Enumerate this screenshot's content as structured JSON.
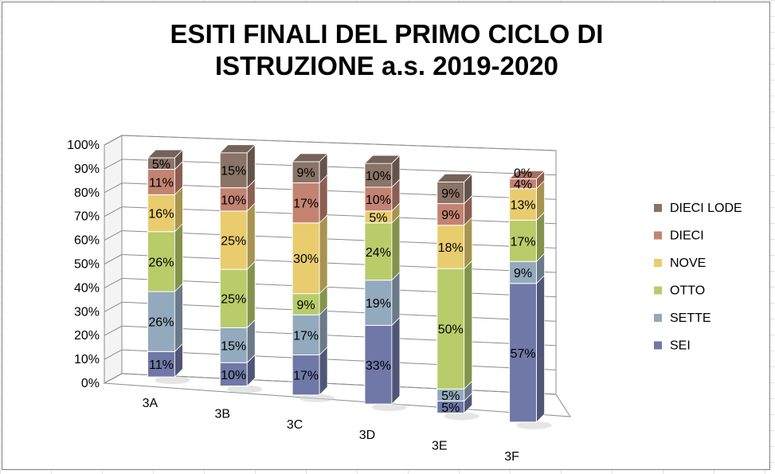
{
  "chart_data": {
    "type": "bar",
    "stacked": true,
    "three_d": true,
    "title_lines": [
      "ESITI FINALI DEL PRIMO CICLO DI",
      "ISTRUZIONE a.s. 2019-2020"
    ],
    "categories": [
      "3A",
      "3B",
      "3C",
      "3D",
      "3E",
      "3F"
    ],
    "ylim": [
      0,
      100
    ],
    "y_ticks": [
      "0%",
      "10%",
      "20%",
      "30%",
      "40%",
      "50%",
      "60%",
      "70%",
      "80%",
      "90%",
      "100%"
    ],
    "grid": true,
    "legend_position": "right",
    "series": [
      {
        "name": "SEI",
        "color": "#6f78a6",
        "values": [
          11,
          10,
          17,
          33,
          5,
          57
        ],
        "labels": [
          "11%",
          "10%",
          "17%",
          "33%",
          "5%",
          "57%"
        ]
      },
      {
        "name": "SETTE",
        "color": "#93a9bd",
        "values": [
          26,
          15,
          17,
          19,
          5,
          9
        ],
        "labels": [
          "26%",
          "15%",
          "17%",
          "19%",
          "5%",
          "9%"
        ]
      },
      {
        "name": "OTTO",
        "color": "#b8cc6a",
        "values": [
          26,
          25,
          9,
          24,
          50,
          17
        ],
        "labels": [
          "26%",
          "25%",
          "9%",
          "24%",
          "50%",
          "17%"
        ]
      },
      {
        "name": "NOVE",
        "color": "#e9cc6e",
        "values": [
          16,
          25,
          30,
          5,
          18,
          13
        ],
        "labels": [
          "16%",
          "25%",
          "30%",
          "5%",
          "18%",
          "13%"
        ]
      },
      {
        "name": "DIECI",
        "color": "#c28371",
        "values": [
          11,
          10,
          17,
          10,
          9,
          4
        ],
        "labels": [
          "11%",
          "10%",
          "17%",
          "10%",
          "9%",
          "4%"
        ]
      },
      {
        "name": "DIECI LODE",
        "color": "#8a7367",
        "values": [
          5,
          15,
          9,
          10,
          9,
          0
        ],
        "labels": [
          "5%",
          "15%",
          "9%",
          "10%",
          "9%",
          "0%"
        ]
      }
    ]
  }
}
